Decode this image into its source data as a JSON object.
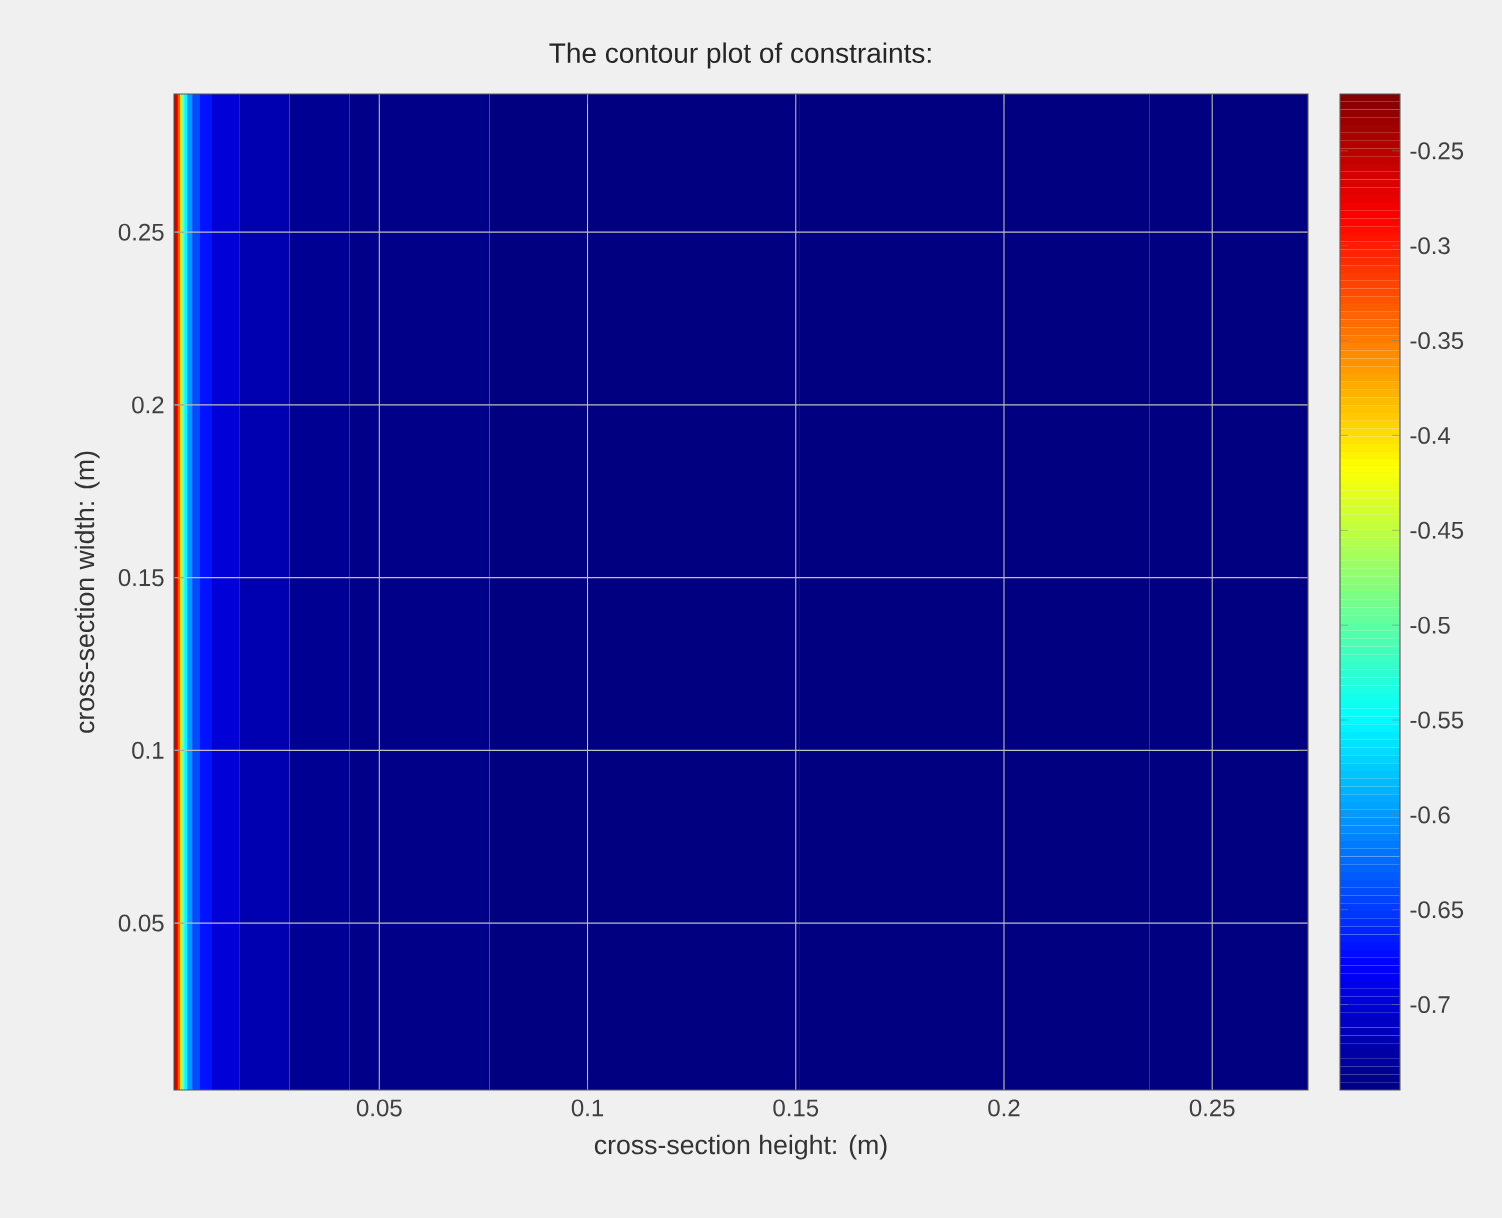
{
  "chart_data": {
    "type": "heatmap",
    "title": "The contour plot of constraints:",
    "xlabel": "cross-section height: (m)",
    "ylabel": "cross-section width: (m)",
    "x": [
      0.0009,
      0.0014,
      0.0019,
      0.0024,
      0.0029,
      0.0034,
      0.0043,
      0.0058,
      0.0077,
      0.0115,
      0.0212,
      0.0356,
      0.05,
      0.103,
      0.199,
      0.271
    ],
    "cells": [
      [
        -0.22,
        -0.27,
        -0.33,
        -0.4,
        -0.48,
        -0.55,
        -0.6,
        -0.64,
        -0.67,
        -0.7,
        -0.72,
        -0.735,
        -0.74,
        -0.745,
        -0.745,
        -0.745
      ]
    ],
    "xlim": [
      0.0007,
      0.273
    ],
    "ylim": [
      0.0017,
      0.29
    ],
    "xticks": [
      0.05,
      0.1,
      0.15,
      0.2,
      0.25
    ],
    "yticks": [
      0.05,
      0.1,
      0.15,
      0.2,
      0.25
    ],
    "clim": [
      -0.745,
      -0.22
    ],
    "cticks": [
      -0.7,
      -0.65,
      -0.6,
      -0.55,
      -0.5,
      -0.45,
      -0.4,
      -0.35,
      -0.3,
      -0.25
    ],
    "grid": true
  }
}
